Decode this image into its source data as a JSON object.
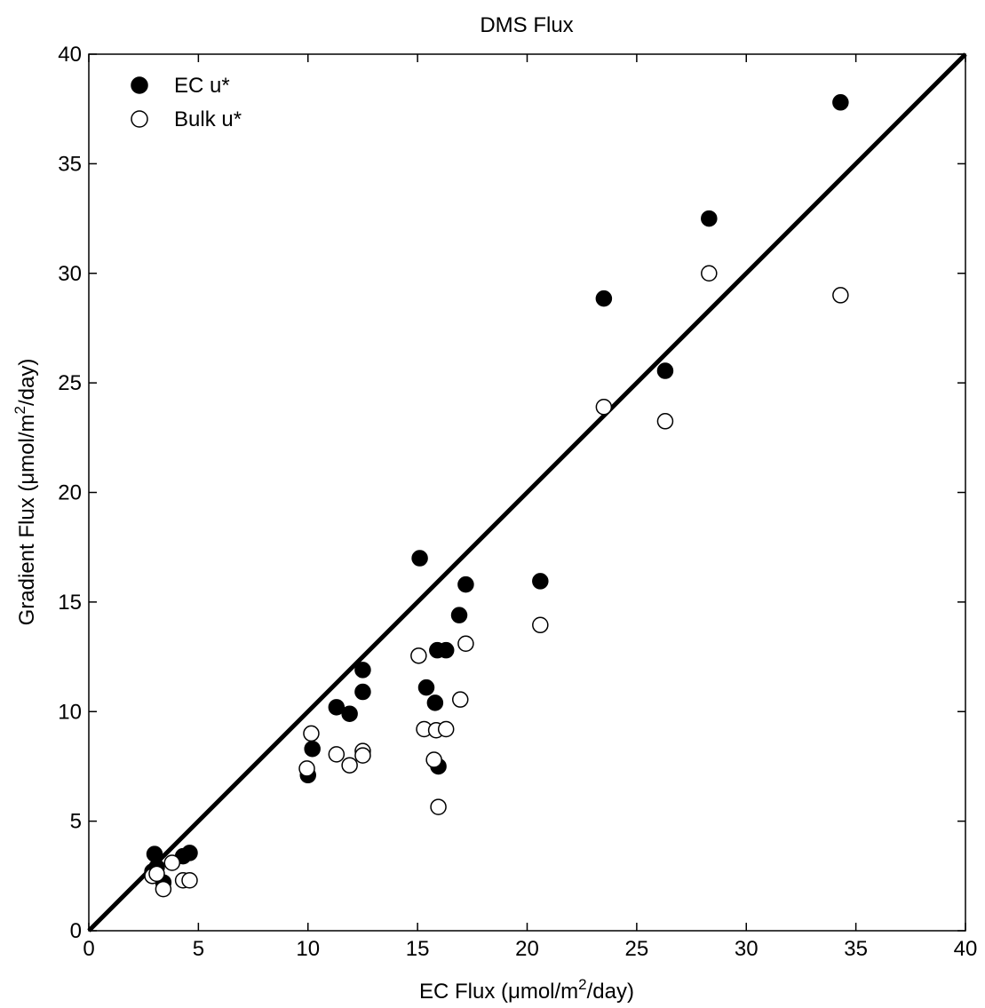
{
  "chart_data": {
    "type": "scatter",
    "title": "DMS Flux",
    "xlabel": "EC Flux (μmol/m2/day)",
    "ylabel": "Gradient Flux (μmol/m2/day)",
    "xlim": [
      0,
      40
    ],
    "ylim": [
      0,
      40
    ],
    "xticks": [
      "0",
      "5",
      "10",
      "15",
      "20",
      "25",
      "30",
      "35",
      "40"
    ],
    "yticks": [
      "0",
      "5",
      "10",
      "15",
      "20",
      "25",
      "30",
      "35",
      "40"
    ],
    "grid": false,
    "legend_position": "top-left",
    "reference_line": {
      "x": [
        0,
        40
      ],
      "y": [
        0,
        40
      ]
    },
    "series": [
      {
        "name": "EC u*",
        "marker": "filled-circle",
        "color": "#000000",
        "points": [
          [
            3.0,
            3.5
          ],
          [
            3.1,
            2.9
          ],
          [
            2.9,
            2.7
          ],
          [
            3.4,
            2.2
          ],
          [
            4.3,
            3.4
          ],
          [
            4.6,
            3.55
          ],
          [
            10.0,
            7.1
          ],
          [
            10.2,
            8.3
          ],
          [
            11.3,
            10.2
          ],
          [
            11.9,
            9.9
          ],
          [
            12.5,
            11.9
          ],
          [
            12.5,
            10.9
          ],
          [
            15.1,
            17.0
          ],
          [
            15.4,
            11.1
          ],
          [
            15.8,
            10.4
          ],
          [
            15.9,
            12.8
          ],
          [
            16.3,
            12.8
          ],
          [
            15.95,
            7.5
          ],
          [
            16.9,
            14.4
          ],
          [
            17.2,
            15.8
          ],
          [
            20.6,
            15.95
          ],
          [
            23.5,
            28.85
          ],
          [
            26.3,
            25.55
          ],
          [
            28.3,
            32.5
          ],
          [
            34.3,
            37.8
          ]
        ]
      },
      {
        "name": "Bulk u*",
        "marker": "open-circle",
        "color": "#000000",
        "points": [
          [
            2.9,
            2.5
          ],
          [
            3.1,
            2.6
          ],
          [
            3.4,
            1.9
          ],
          [
            3.8,
            3.1
          ],
          [
            4.3,
            2.3
          ],
          [
            4.6,
            2.3
          ],
          [
            9.95,
            7.4
          ],
          [
            10.15,
            9.0
          ],
          [
            11.3,
            8.05
          ],
          [
            11.9,
            7.55
          ],
          [
            12.5,
            8.2
          ],
          [
            12.5,
            8.0
          ],
          [
            15.05,
            12.55
          ],
          [
            15.3,
            9.2
          ],
          [
            15.75,
            7.8
          ],
          [
            15.85,
            9.15
          ],
          [
            15.95,
            5.65
          ],
          [
            16.3,
            9.2
          ],
          [
            16.95,
            10.55
          ],
          [
            17.2,
            13.1
          ],
          [
            20.6,
            13.95
          ],
          [
            23.5,
            23.9
          ],
          [
            26.3,
            23.25
          ],
          [
            28.3,
            30.0
          ],
          [
            34.3,
            29.0
          ]
        ]
      }
    ]
  }
}
